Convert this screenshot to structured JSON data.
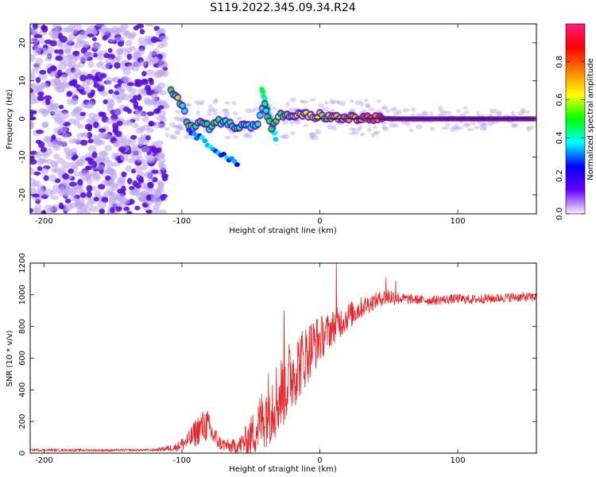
{
  "title": "S119.2022.345.09.34.R24",
  "colors": {
    "spectrogram_low": "#b9a4ee",
    "spectrogram_mid": "#5a10d8",
    "snr_line": "#e8262a",
    "colormap": [
      "#f5f0ff",
      "#6a00ff",
      "#0000ff",
      "#00ffff",
      "#00ff00",
      "#ffff00",
      "#ff8000",
      "#ff0000",
      "#ff1a80"
    ]
  },
  "chart_data": [
    {
      "type": "heatmap",
      "title": "S119.2022.345.09.34.R24",
      "xlabel": "Height of straight line (km)",
      "ylabel": "Frequency (Hz)",
      "xlim": [
        -210,
        157
      ],
      "ylim": [
        -25,
        25
      ],
      "xticks": [
        -200,
        -100,
        0,
        100
      ],
      "xtick_labels": [
        "-200",
        "-100",
        "0",
        "100"
      ],
      "yticks": [
        -20,
        -10,
        0,
        10,
        20
      ],
      "ytick_labels": [
        "-20",
        "-10",
        "0",
        "10",
        "20"
      ],
      "colorbar": {
        "label": "Normalized spectral amplitude",
        "range": [
          0.0,
          1.0
        ],
        "ticks": [
          0.0,
          0.2,
          0.4,
          0.6,
          0.8
        ],
        "tick_labels": [
          "0.0",
          "0.2",
          "0.4",
          "0.6",
          "0.8"
        ]
      },
      "reference_line_hz": 0,
      "ridge": [
        {
          "x": -108,
          "y": 7,
          "a": 0.5
        },
        {
          "x": -103,
          "y": 5.5,
          "a": 0.55
        },
        {
          "x": -98,
          "y": 1.5,
          "a": 0.4
        },
        {
          "x": -95,
          "y": -2,
          "a": 0.55
        },
        {
          "x": -90,
          "y": -1.5,
          "a": 0.45
        },
        {
          "x": -85,
          "y": -0.5,
          "a": 0.5
        },
        {
          "x": -80,
          "y": -2.5,
          "a": 0.45
        },
        {
          "x": -75,
          "y": -1,
          "a": 0.5
        },
        {
          "x": -70,
          "y": -0.5,
          "a": 0.45
        },
        {
          "x": -65,
          "y": -1.5,
          "a": 0.45
        },
        {
          "x": -60,
          "y": -2,
          "a": 0.5
        },
        {
          "x": -55,
          "y": -1,
          "a": 0.45
        },
        {
          "x": -50,
          "y": -2.5,
          "a": 0.45
        },
        {
          "x": -45,
          "y": -1,
          "a": 0.4
        },
        {
          "x": -40,
          "y": 4,
          "a": 0.45
        },
        {
          "x": -38,
          "y": 1,
          "a": 0.45
        },
        {
          "x": -35,
          "y": -3,
          "a": 0.5
        },
        {
          "x": -30,
          "y": 1,
          "a": 0.55
        },
        {
          "x": -25,
          "y": 0.5,
          "a": 0.5
        },
        {
          "x": -18,
          "y": 1,
          "a": 0.6
        },
        {
          "x": -10,
          "y": 1,
          "a": 0.6
        },
        {
          "x": -5,
          "y": 0.5,
          "a": 0.65
        },
        {
          "x": 0,
          "y": 1,
          "a": 0.6
        },
        {
          "x": 5,
          "y": 0.5,
          "a": 0.65
        },
        {
          "x": 15,
          "y": 0.2,
          "a": 0.7
        },
        {
          "x": 30,
          "y": 0.2,
          "a": 0.75
        },
        {
          "x": 45,
          "y": 0.1,
          "a": 0.85
        },
        {
          "x": 60,
          "y": 0,
          "a": 0.92
        },
        {
          "x": 80,
          "y": 0,
          "a": 0.95
        },
        {
          "x": 100,
          "y": 0,
          "a": 0.97
        },
        {
          "x": 120,
          "y": 0,
          "a": 0.97
        },
        {
          "x": 140,
          "y": 0,
          "a": 0.97
        },
        {
          "x": 157,
          "y": 0,
          "a": 0.97
        }
      ],
      "diagonal_branches": [
        {
          "from": [
            -95,
            -3
          ],
          "to": [
            -60,
            -12
          ],
          "a": 0.35
        },
        {
          "from": [
            -42,
            8
          ],
          "to": [
            -32,
            -5
          ],
          "a": 0.4
        }
      ]
    },
    {
      "type": "line",
      "xlabel": "Height of straight line (km)",
      "ylabel": "SNR (10 * v/v)",
      "xlim": [
        -210,
        157
      ],
      "ylim": [
        0,
        1200
      ],
      "xticks": [
        -200,
        -100,
        0,
        100
      ],
      "xtick_labels": [
        "-200",
        "-100",
        "0",
        "100"
      ],
      "yticks": [
        0,
        200,
        400,
        600,
        800,
        1000,
        1200
      ],
      "ytick_labels": [
        "0",
        "200",
        "400",
        "600",
        "800",
        "1000",
        "1200"
      ],
      "envelope": {
        "x": [
          -210,
          -150,
          -120,
          -105,
          -95,
          -88,
          -82,
          -78,
          -72,
          -65,
          -58,
          -52,
          -46,
          -40,
          -35,
          -30,
          -25,
          -20,
          -15,
          -10,
          -5,
          0,
          5,
          10,
          15,
          20,
          25,
          30,
          35,
          40,
          45,
          50,
          55,
          60,
          70,
          80,
          90,
          100,
          110,
          120,
          130,
          140,
          150,
          157
        ],
        "mean": [
          20,
          18,
          20,
          35,
          80,
          150,
          180,
          120,
          60,
          40,
          50,
          90,
          150,
          250,
          320,
          350,
          430,
          500,
          560,
          620,
          680,
          720,
          760,
          800,
          830,
          860,
          890,
          920,
          940,
          960,
          980,
          990,
          980,
          975,
          970,
          965,
          970,
          975,
          970,
          975,
          980,
          985,
          985,
          985
        ],
        "spread": [
          8,
          8,
          8,
          25,
          60,
          100,
          110,
          80,
          45,
          40,
          60,
          110,
          160,
          220,
          260,
          240,
          250,
          240,
          220,
          200,
          180,
          150,
          120,
          110,
          100,
          90,
          80,
          70,
          60,
          50,
          50,
          60,
          45,
          35,
          30,
          30,
          30,
          30,
          30,
          30,
          30,
          30,
          30,
          30
        ]
      },
      "peaks": [
        {
          "x": -26,
          "y": 900
        },
        {
          "x": 12,
          "y": 1200
        },
        {
          "x": 48,
          "y": 1110
        },
        {
          "x": 55,
          "y": 1090
        }
      ]
    }
  ]
}
